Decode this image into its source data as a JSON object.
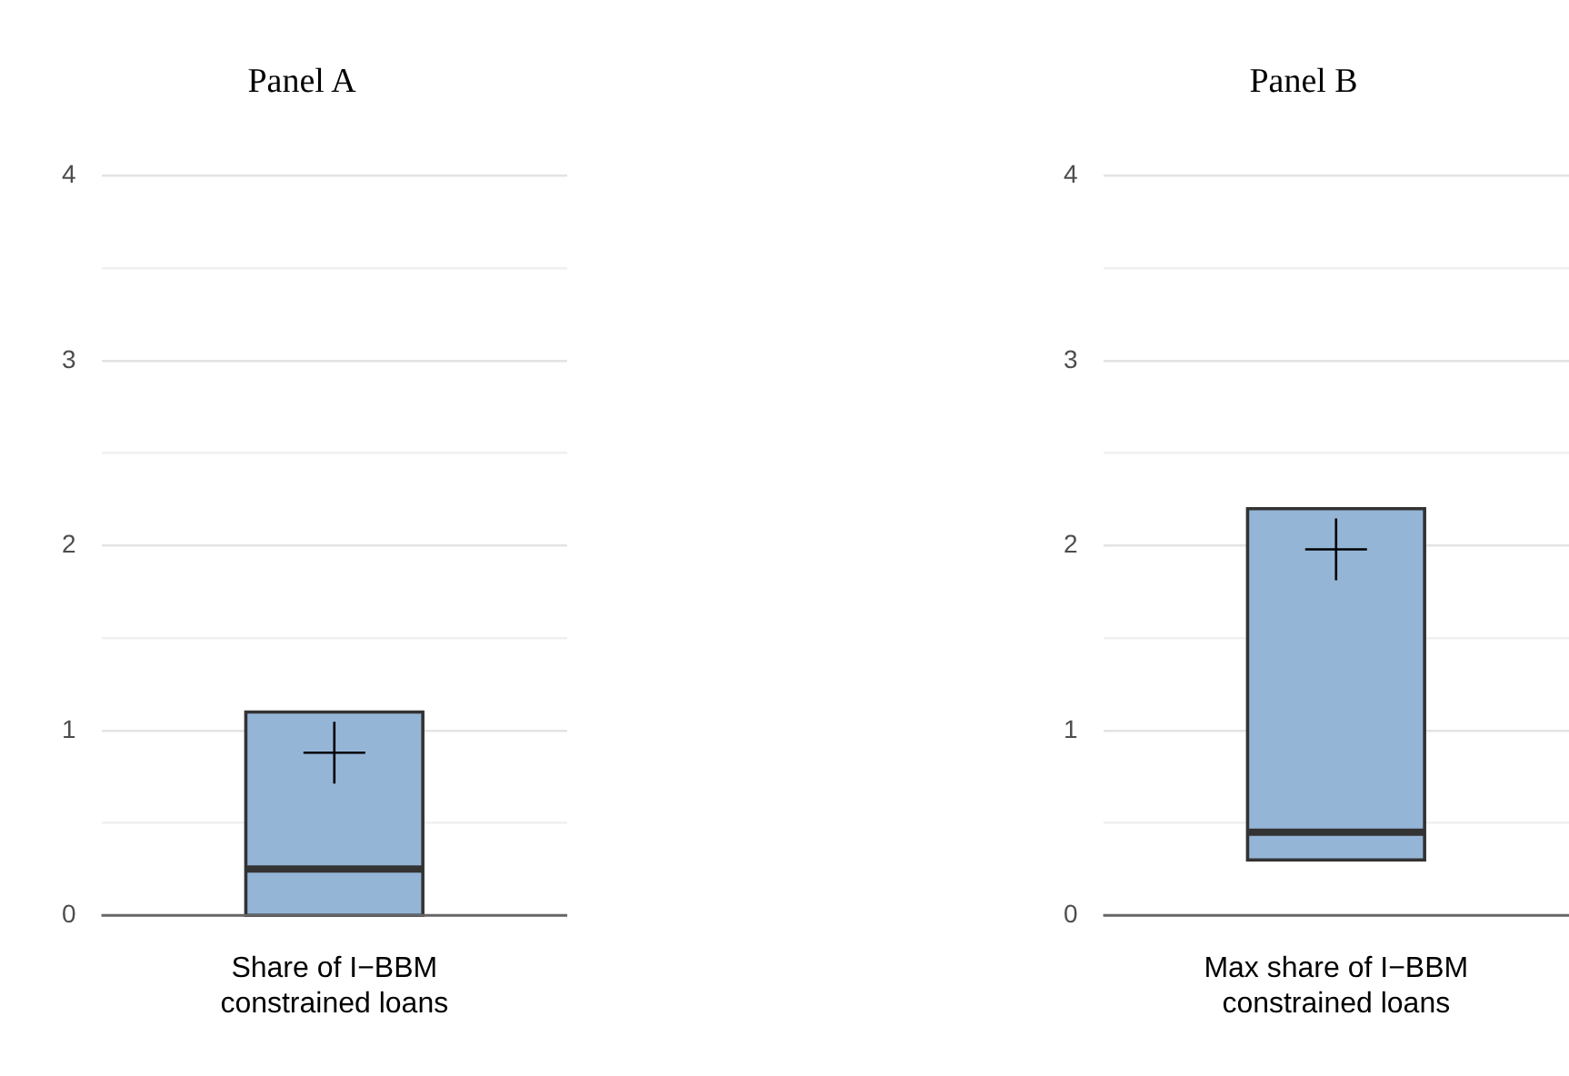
{
  "chart_data": [
    {
      "type": "box",
      "title": "Panel A",
      "categories": [
        "Share of I−BBM constrained loans"
      ],
      "color": "#95b5d7",
      "boxes": [
        {
          "low": 0,
          "q1": 0,
          "median": 0.25,
          "q3": 1.1,
          "high": 1.1,
          "mean": 0.88
        }
      ],
      "ylim": [
        0,
        4
      ],
      "yticks": [
        0,
        {
          "value": 0.5,
          "label": null
        },
        1,
        {
          "value": 1.5,
          "label": null
        },
        2,
        {
          "value": 2.5,
          "label": null
        },
        3,
        {
          "value": 3.5,
          "label": null
        },
        4
      ],
      "grid": "y"
    },
    {
      "type": "box",
      "title": "Panel B",
      "categories": [
        "Max share of I−BBM constrained loans"
      ],
      "color": "#95b5d7",
      "boxes": [
        {
          "low": 0.3,
          "q1": 0.3,
          "median": 0.45,
          "q3": 2.2,
          "high": 2.2,
          "mean": 1.98
        }
      ],
      "ylim": [
        0,
        4
      ],
      "yticks": [
        0,
        {
          "value": 0.5,
          "label": null
        },
        1,
        {
          "value": 1.5,
          "label": null
        },
        2,
        {
          "value": 2.5,
          "label": null
        },
        3,
        {
          "value": 3.5,
          "label": null
        },
        4
      ],
      "grid": "y"
    }
  ]
}
